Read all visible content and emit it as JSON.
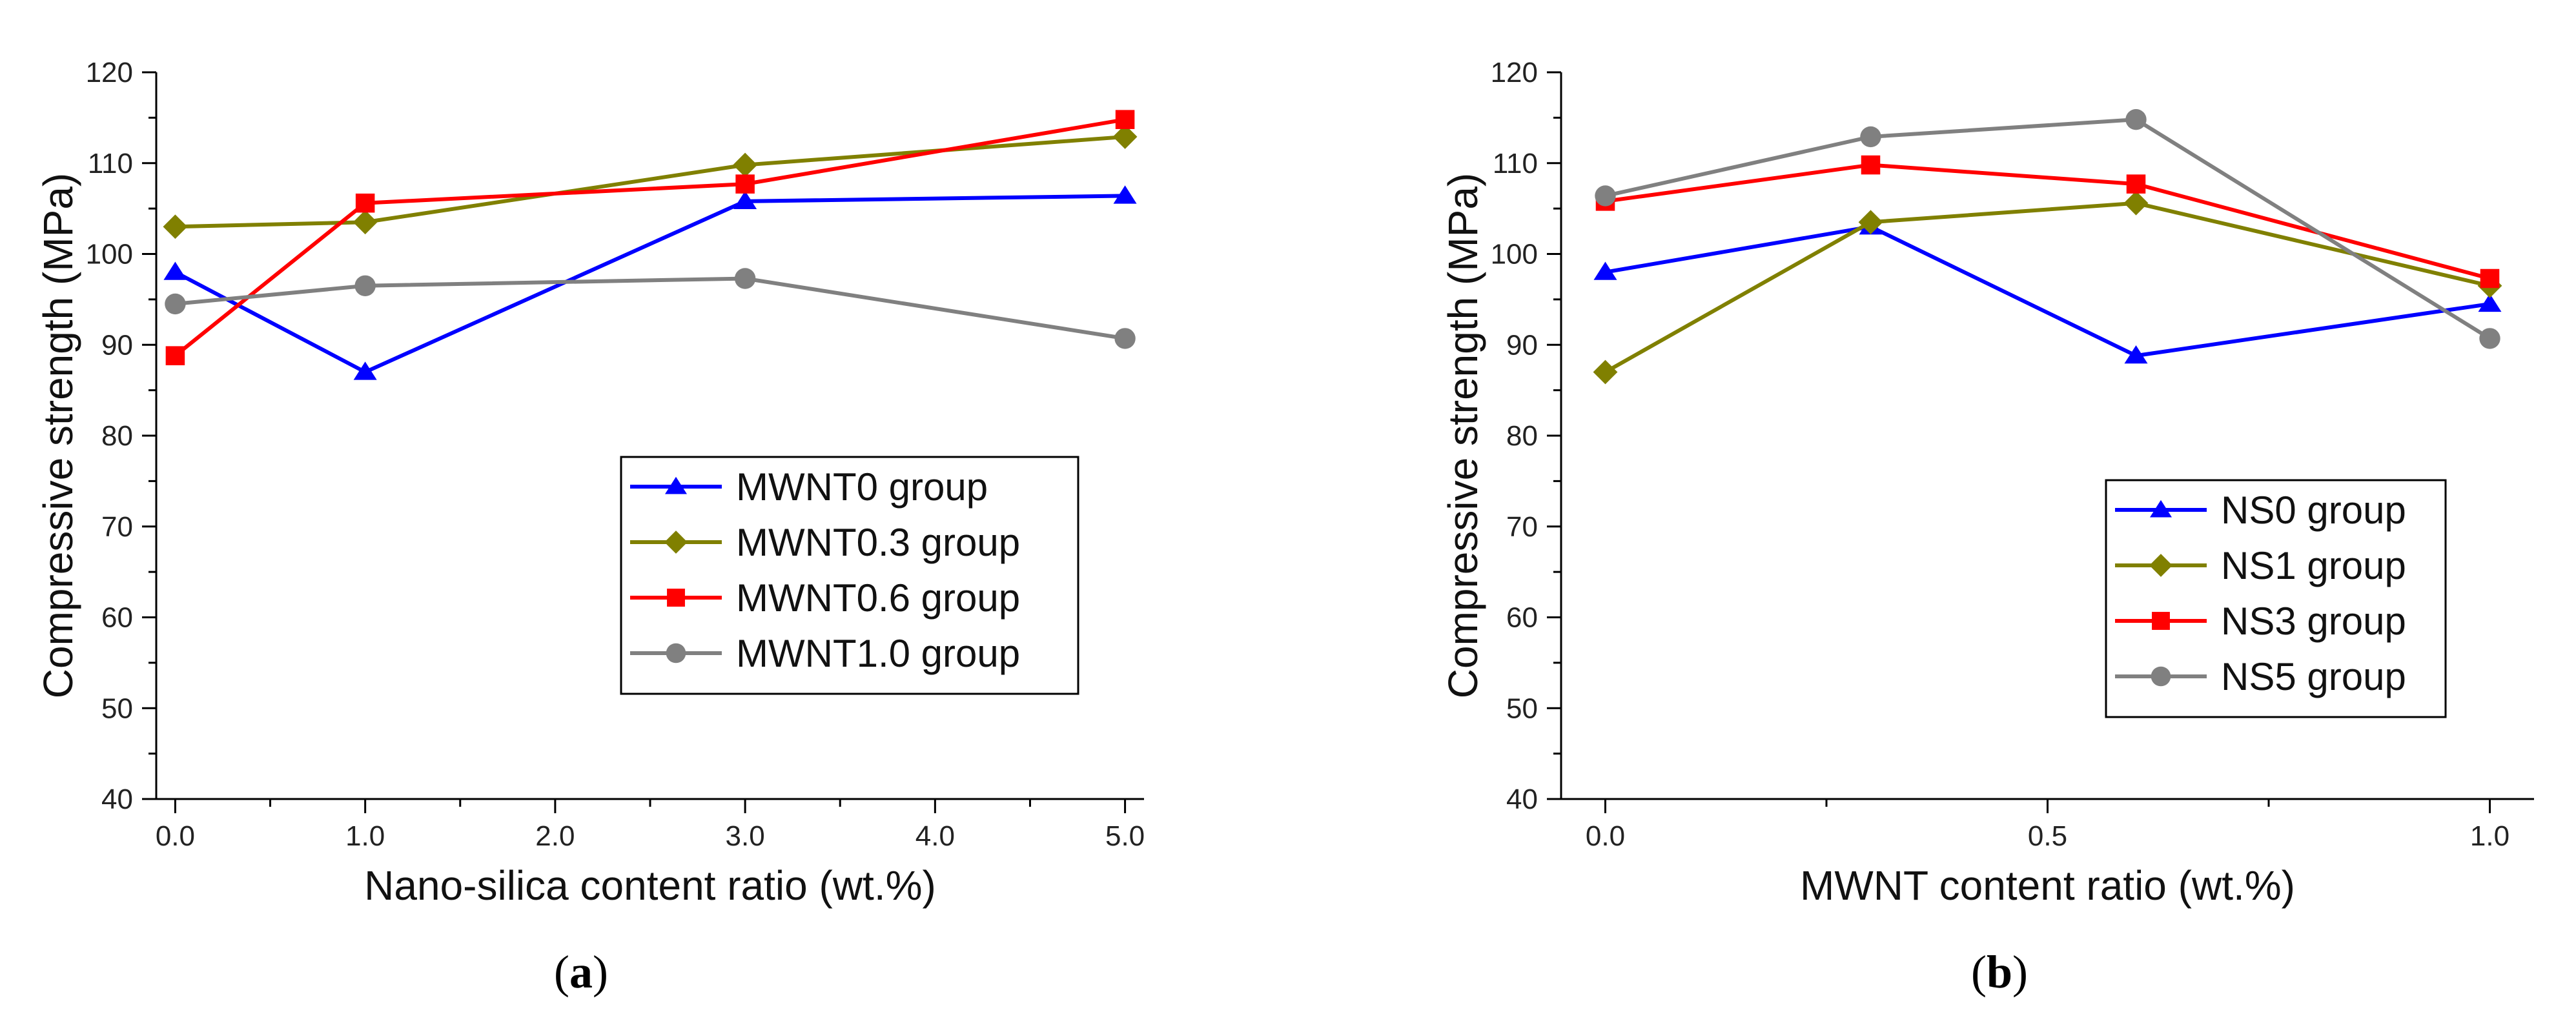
{
  "chart_data": [
    {
      "type": "line",
      "panel_label": {
        "open": "(",
        "letter": "a",
        "close": ")"
      },
      "x": [
        0.0,
        1.0,
        3.0,
        5.0
      ],
      "x_ticks": [
        0.0,
        1.0,
        2.0,
        3.0,
        4.0,
        5.0
      ],
      "x_tick_labels": [
        "0.0",
        "1.0",
        "2.0",
        "3.0",
        "4.0",
        "5.0"
      ],
      "xlim": [
        -0.1,
        5.1
      ],
      "ylim": [
        40,
        120
      ],
      "y_ticks": [
        40,
        50,
        60,
        70,
        80,
        90,
        100,
        110,
        120
      ],
      "y_tick_labels": [
        "40",
        "50",
        "60",
        "70",
        "80",
        "90",
        "100",
        "110",
        "120"
      ],
      "xlabel": "Nano-silica content ratio (wt.%)",
      "ylabel": "Compressive strength (MPa)",
      "legend_position": "lower-right",
      "series": [
        {
          "name": "MWNT0 group",
          "color": "#0000ff",
          "marker": "triangle",
          "values": [
            98.0,
            87.0,
            105.8,
            106.4
          ]
        },
        {
          "name": "MWNT0.3 group",
          "color": "#808000",
          "marker": "diamond",
          "values": [
            103.0,
            103.5,
            109.8,
            112.9
          ]
        },
        {
          "name": "MWNT0.6 group",
          "color": "#ff0000",
          "marker": "square",
          "values": [
            88.8,
            105.6,
            107.7,
            114.8
          ]
        },
        {
          "name": "MWNT1.0 group",
          "color": "#808080",
          "marker": "circle",
          "values": [
            94.5,
            96.5,
            97.3,
            90.7
          ]
        }
      ]
    },
    {
      "type": "line",
      "panel_label": {
        "open": "(",
        "letter": "b",
        "close": ")"
      },
      "x": [
        0.0,
        0.3,
        0.6,
        1.0
      ],
      "x_ticks": [
        0.0,
        0.5,
        1.0
      ],
      "x_tick_labels": [
        "0.0",
        "0.5",
        "1.0"
      ],
      "xlim": [
        -0.05,
        1.05
      ],
      "ylim": [
        40,
        120
      ],
      "y_ticks": [
        40,
        50,
        60,
        70,
        80,
        90,
        100,
        110,
        120
      ],
      "y_tick_labels": [
        "40",
        "50",
        "60",
        "70",
        "80",
        "90",
        "100",
        "110",
        "120"
      ],
      "xlabel": "MWNT content ratio (wt.%)",
      "ylabel": "Compressive strength (MPa)",
      "legend_position": "lower-right",
      "series": [
        {
          "name": "NS0 group",
          "color": "#0000ff",
          "marker": "triangle",
          "values": [
            98.0,
            103.0,
            88.8,
            94.5
          ]
        },
        {
          "name": "NS1 group",
          "color": "#808000",
          "marker": "diamond",
          "values": [
            87.0,
            103.5,
            105.6,
            96.5
          ]
        },
        {
          "name": "NS3 group",
          "color": "#ff0000",
          "marker": "square",
          "values": [
            105.8,
            109.8,
            107.7,
            97.3
          ]
        },
        {
          "name": "NS5 group",
          "color": "#808080",
          "marker": "circle",
          "values": [
            106.4,
            112.9,
            114.8,
            90.7
          ]
        }
      ]
    }
  ]
}
